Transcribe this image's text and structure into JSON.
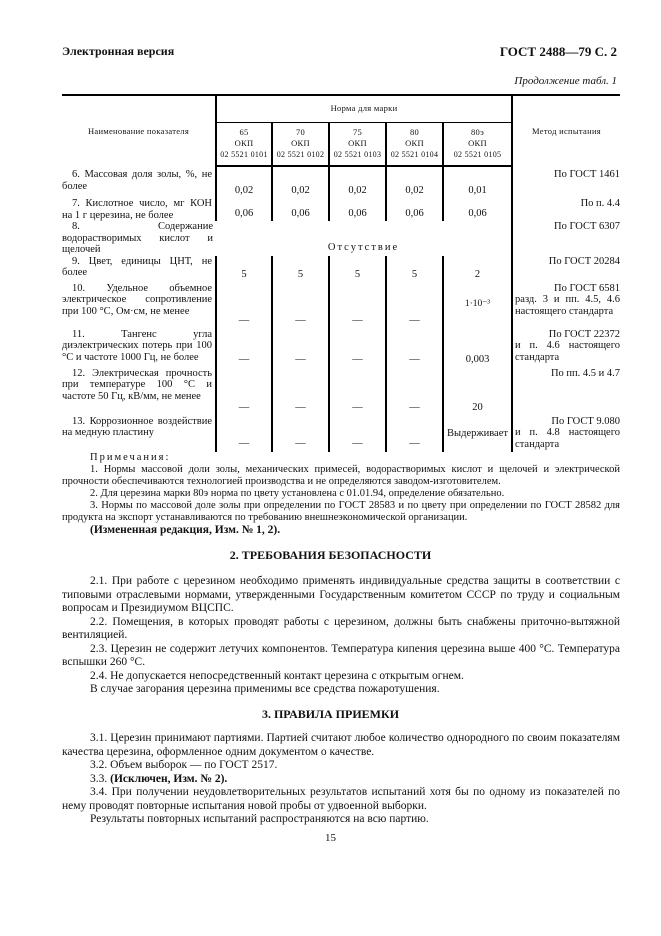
{
  "header": {
    "left": "Электронная версия",
    "right": "ГОСТ 2488—79 С. 2"
  },
  "continuation": "Продолжение табл. 1",
  "table": {
    "col_name": "Наименование показателя",
    "col_norm": "Норма для марки",
    "col_method": "Метод испытания",
    "marks": [
      {
        "mark": "65",
        "okp": "ОКП",
        "code": "02 5521 0101"
      },
      {
        "mark": "70",
        "okp": "ОКП",
        "code": "02 5521 0102"
      },
      {
        "mark": "75",
        "okp": "ОКП",
        "code": "02 5521 0103"
      },
      {
        "mark": "80",
        "okp": "ОКП",
        "code": "02 5521 0104"
      },
      {
        "mark": "80э",
        "okp": "ОКП",
        "code": "02 5521 0105"
      }
    ],
    "rows": [
      {
        "name": "6. Массовая доля золы, %, не более",
        "values": [
          "0,02",
          "0,02",
          "0,02",
          "0,02",
          "0,01"
        ],
        "method": "По ГОСТ 1461"
      },
      {
        "name": "7. Кислотное число, мг КОН на 1 г церезина, не более",
        "values": [
          "0,06",
          "0,06",
          "0,06",
          "0,06",
          "0,06"
        ],
        "method": "По п. 4.4"
      },
      {
        "name": "8. Содержание водорастворимых кислот и щелочей",
        "span_value": "Отсутствие",
        "method": "По ГОСТ 6307"
      },
      {
        "name": "9. Цвет, единицы ЦНТ, не более",
        "values": [
          "5",
          "5",
          "5",
          "5",
          "2"
        ],
        "method": "По ГОСТ 20284"
      },
      {
        "name": "10. Удельное объемное электрическое сопротивление при 100 °С, Ом·см, не менее",
        "values": [
          "—",
          "—",
          "—",
          "—",
          "1·10⁻³"
        ],
        "method_head": "По ГОСТ 6581",
        "method": "разд. 3 и пп. 4.5, 4.6 настоящего стандарта"
      },
      {
        "name": "11. Тангенс угла диэлектрических потерь при 100 °С и частоте 1000 Гц, не более",
        "values": [
          "—",
          "—",
          "—",
          "—",
          "0,003"
        ],
        "method_head": "По ГОСТ 22372",
        "method": "и п. 4.6 настоящего стандарта"
      },
      {
        "name": "12. Электрическая прочность при температуре 100 °С и частоте 50 Гц, кВ/мм, не менее",
        "values": [
          "—",
          "—",
          "—",
          "—",
          "20"
        ],
        "method": "По пп. 4.5 и 4.7"
      },
      {
        "name": "13. Коррозионное воздействие на медную пластину",
        "values": [
          "—",
          "—",
          "—",
          "—",
          "Выдерживает"
        ],
        "method_head": "По ГОСТ 9.080",
        "method": "и п. 4.8 настоящего стандарта"
      }
    ]
  },
  "notes": {
    "title": "Примечания:",
    "items": [
      "1. Нормы массовой доли золы, механических примесей, водорастворимых кислот и щелочей и электрической прочности обеспечиваются технологией производства и не определяются заводом-изготовителем.",
      "2. Для церезина марки 80э норма по цвету установлена с 01.01.94, определение обязательно.",
      "3. Нормы по массовой доле золы при определении по ГОСТ 28583 и по цвету при определении по ГОСТ 28582 для продукта на экспорт устанавливаются по требованию внешнеэкономической организации."
    ],
    "edition": "(Измененная редакция, Изм. № 1, 2)."
  },
  "section2": {
    "title": "2. ТРЕБОВАНИЯ БЕЗОПАСНОСТИ",
    "paras": [
      "2.1. При работе с церезином необходимо применять индивидуальные средства защиты в соответствии с типовыми отраслевыми нормами, утвержденными Государственным комитетом СССР по труду и социальным вопросам и Президиумом ВЦСПС.",
      "2.2. Помещения, в которых проводят работы с церезином, должны быть снабжены приточно-вытяжной вентиляцией.",
      "2.3. Церезин не содержит летучих компонентов. Температура кипения церезина выше 400 °С. Температура вспышки 260 °С.",
      "2.4. Не допускается непосредственный контакт церезина с открытым огнем.",
      "В случае загорания церезина применимы все средства пожаротушения."
    ]
  },
  "section3": {
    "title": "3. ПРАВИЛА ПРИЕМКИ",
    "paras": [
      "3.1. Церезин принимают партиями. Партией считают любое количество однородного по своим показателям качества церезина, оформленное одним документом о качестве.",
      "3.2. Объем выборок — по ГОСТ 2517.",
      "3.3.",
      "(Исключен, Изм. № 2).",
      "3.4. При получении неудовлетворительных результатов испытаний хотя бы по одному из показателей по нему проводят повторные испытания новой пробы от удвоенной выборки.",
      "Результаты повторных испытаний распространяются на всю партию."
    ]
  },
  "page_number": "15"
}
